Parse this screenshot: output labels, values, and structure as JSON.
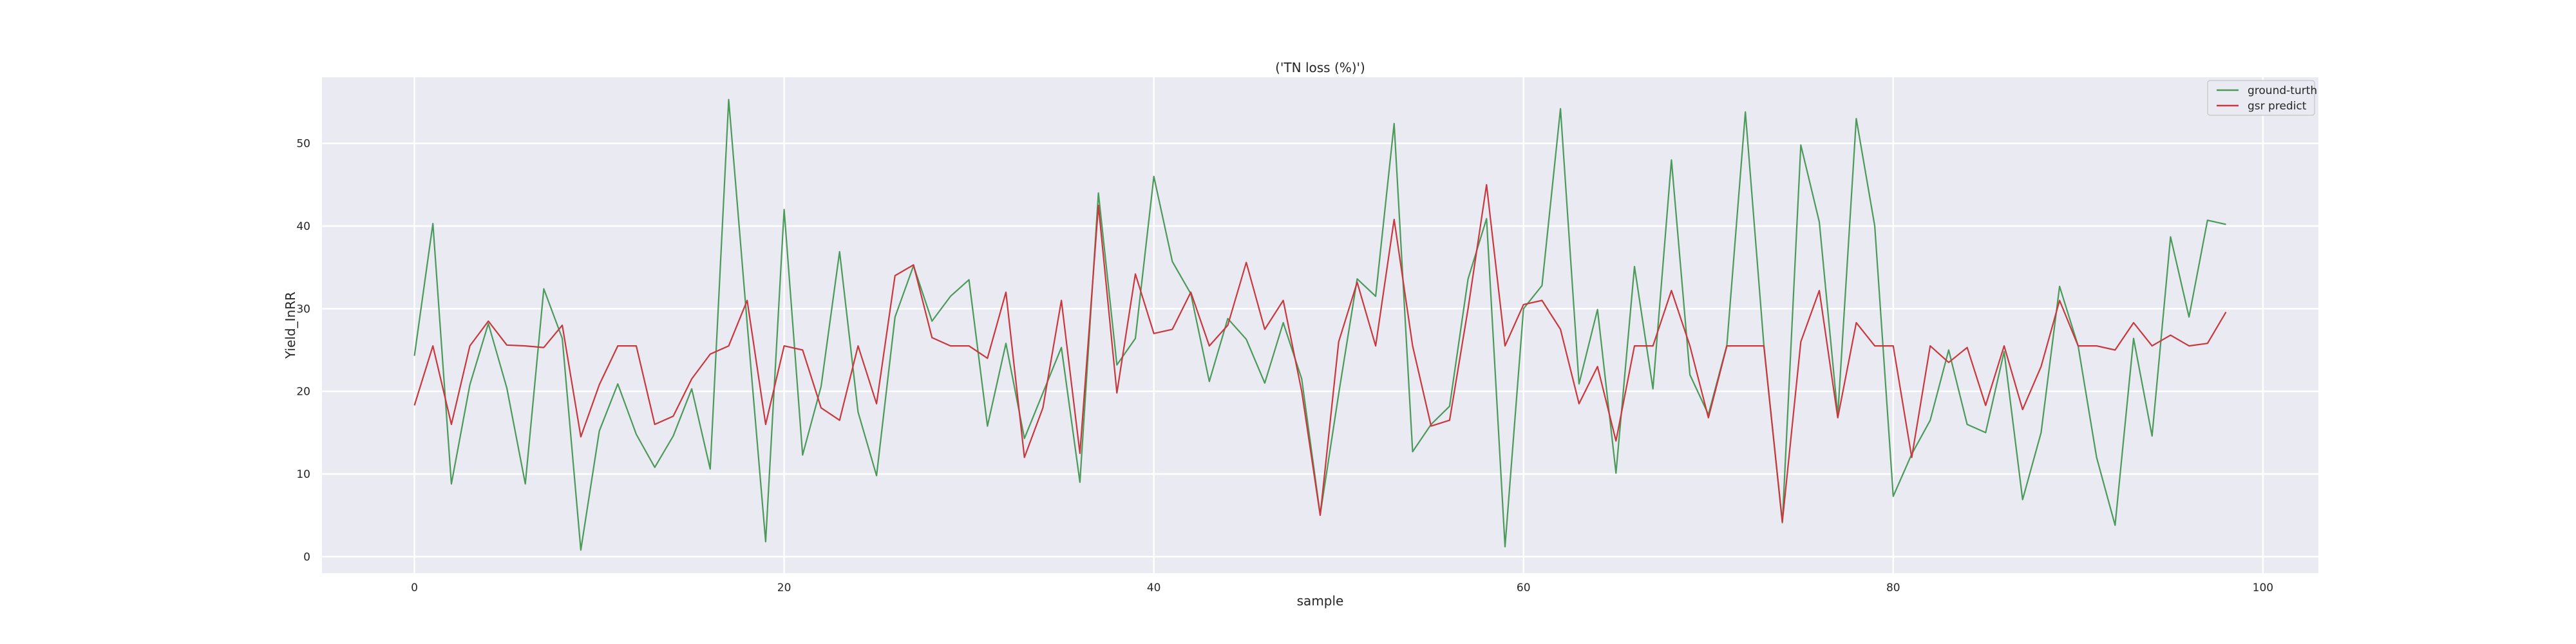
{
  "chart_data": {
    "type": "line",
    "title": "('TN loss (%)')",
    "xlabel": "sample",
    "ylabel": "Yield_InRR",
    "xlim": [
      -5,
      103
    ],
    "ylim": [
      -2,
      58
    ],
    "xticks": [
      0,
      20,
      40,
      60,
      80,
      100
    ],
    "yticks": [
      0,
      10,
      20,
      30,
      40,
      50
    ],
    "grid": true,
    "legend_position": "top-right",
    "x": [
      0,
      1,
      2,
      3,
      4,
      5,
      6,
      7,
      8,
      9,
      10,
      11,
      12,
      13,
      14,
      15,
      16,
      17,
      18,
      19,
      20,
      21,
      22,
      23,
      24,
      25,
      26,
      27,
      28,
      29,
      30,
      31,
      32,
      33,
      34,
      35,
      36,
      37,
      38,
      39,
      40,
      41,
      42,
      43,
      44,
      45,
      46,
      47,
      48,
      49,
      50,
      51,
      52,
      53,
      54,
      55,
      56,
      57,
      58,
      59,
      60,
      61,
      62,
      63,
      64,
      65,
      66,
      67,
      68,
      69,
      70,
      71,
      72,
      73,
      74,
      75,
      76,
      77,
      78,
      79,
      80,
      81,
      82,
      83,
      84,
      85,
      86,
      87,
      88,
      89,
      90,
      91,
      92,
      93,
      94,
      95,
      96,
      97,
      98
    ],
    "series": [
      {
        "name": "ground-turth",
        "color": "#4a9a5a",
        "values": [
          24.3,
          40.3,
          8.8,
          20.8,
          28.2,
          20.4,
          8.8,
          32.4,
          26.4,
          0.8,
          15.2,
          20.9,
          14.8,
          10.8,
          14.6,
          20.3,
          10.6,
          55.3,
          28.2,
          1.8,
          42.0,
          12.3,
          20.6,
          36.9,
          17.5,
          9.8,
          29.0,
          35.2,
          28.5,
          31.5,
          33.5,
          15.8,
          25.8,
          14.3,
          19.8,
          25.3,
          9.0,
          44.0,
          23.2,
          26.4,
          46.0,
          35.7,
          31.8,
          21.2,
          28.8,
          26.3,
          21.0,
          28.3,
          21.5,
          5.1,
          19.7,
          33.6,
          31.5,
          52.4,
          12.7,
          16.0,
          18.2,
          33.6,
          40.9,
          1.2,
          30.0,
          32.8,
          54.2,
          20.9,
          29.9,
          10.1,
          35.1,
          20.3,
          48.0,
          22.0,
          17.2,
          25.6,
          53.8,
          25.6,
          4.1,
          49.8,
          40.5,
          17.1,
          53.0,
          40.0,
          7.3,
          12.4,
          16.5,
          25.0,
          16.0,
          15.0,
          24.8,
          6.9,
          15.0,
          32.7,
          25.5,
          12.0,
          3.8,
          26.4,
          14.6,
          38.7,
          29.0,
          40.7,
          40.2
        ]
      },
      {
        "name": "gsr predict",
        "color": "#c8383d",
        "values": [
          18.3,
          25.5,
          16.0,
          25.5,
          28.5,
          25.6,
          25.5,
          25.3,
          28.0,
          14.5,
          20.8,
          25.5,
          25.5,
          16.0,
          17.0,
          21.5,
          24.5,
          25.5,
          31.0,
          16.0,
          25.5,
          25.0,
          18.0,
          16.5,
          25.5,
          18.5,
          34.0,
          35.3,
          26.5,
          25.5,
          25.5,
          24.0,
          32.0,
          12.0,
          18.0,
          31.0,
          12.5,
          42.5,
          19.8,
          34.2,
          27.0,
          27.5,
          32.0,
          25.5,
          28.0,
          35.6,
          27.5,
          31.0,
          20.0,
          5.0,
          26.0,
          33.2,
          25.5,
          40.8,
          25.5,
          15.8,
          16.5,
          30.0,
          45.0,
          25.5,
          30.5,
          31.0,
          27.5,
          18.5,
          23.0,
          14.0,
          25.5,
          25.5,
          32.2,
          25.5,
          16.8,
          25.5,
          25.5,
          25.5,
          4.2,
          26.0,
          32.2,
          16.8,
          28.3,
          25.5,
          25.5,
          12.0,
          25.5,
          23.5,
          25.3,
          18.3,
          25.5,
          17.8,
          23.0,
          31.0,
          25.5,
          25.5,
          25.0,
          28.3,
          25.5,
          26.8,
          25.5,
          25.8,
          29.6
        ]
      }
    ]
  }
}
